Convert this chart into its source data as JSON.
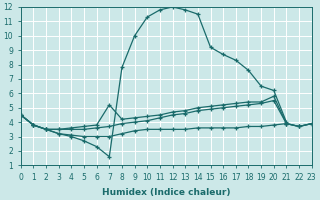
{
  "xlabel": "Humidex (Indice chaleur)",
  "xlim": [
    0,
    23
  ],
  "ylim": [
    1,
    12
  ],
  "xticks": [
    0,
    1,
    2,
    3,
    4,
    5,
    6,
    7,
    8,
    9,
    10,
    11,
    12,
    13,
    14,
    15,
    16,
    17,
    18,
    19,
    20,
    21,
    22,
    23
  ],
  "yticks": [
    1,
    2,
    3,
    4,
    5,
    6,
    7,
    8,
    9,
    10,
    11,
    12
  ],
  "bg_color": "#cce8e8",
  "grid_color": "#ffffff",
  "line_color": "#1a6b6b",
  "curve_arc": {
    "x": [
      0,
      1,
      2,
      3,
      4,
      5,
      6,
      7,
      8,
      9,
      10,
      11,
      12,
      13,
      14,
      15,
      16,
      17,
      18,
      19,
      20,
      21
    ],
    "y": [
      4.5,
      3.8,
      3.5,
      3.2,
      3.0,
      2.7,
      2.3,
      1.6,
      7.8,
      10.0,
      11.3,
      11.8,
      12.0,
      11.8,
      11.5,
      9.2,
      8.7,
      8.3,
      7.6,
      6.5,
      6.2,
      4.0
    ]
  },
  "curve_peak_short": {
    "x": [
      0,
      1,
      2,
      3,
      4,
      5,
      6,
      7,
      8,
      9,
      10,
      11,
      12,
      13,
      14,
      15,
      16,
      17,
      18,
      19,
      20,
      21,
      22,
      23
    ],
    "y": [
      4.5,
      3.8,
      3.5,
      3.5,
      3.6,
      3.7,
      3.8,
      5.2,
      4.2,
      4.3,
      4.4,
      4.5,
      4.7,
      4.8,
      5.0,
      5.1,
      5.2,
      5.3,
      5.4,
      5.4,
      5.8,
      3.9,
      3.7,
      3.9
    ]
  },
  "curve_flat_top": {
    "x": [
      0,
      1,
      2,
      3,
      4,
      5,
      6,
      7,
      8,
      9,
      10,
      11,
      12,
      13,
      14,
      15,
      16,
      17,
      18,
      19,
      20,
      21,
      22,
      23
    ],
    "y": [
      4.5,
      3.8,
      3.5,
      3.5,
      3.5,
      3.5,
      3.6,
      3.7,
      3.9,
      4.0,
      4.1,
      4.3,
      4.5,
      4.6,
      4.8,
      4.9,
      5.0,
      5.1,
      5.2,
      5.3,
      5.5,
      3.9,
      3.7,
      3.9
    ]
  },
  "curve_flat_bot": {
    "x": [
      0,
      1,
      2,
      3,
      4,
      5,
      6,
      7,
      8,
      9,
      10,
      11,
      12,
      13,
      14,
      15,
      16,
      17,
      18,
      19,
      20,
      21,
      22,
      23
    ],
    "y": [
      4.5,
      3.8,
      3.5,
      3.2,
      3.1,
      3.0,
      3.0,
      3.0,
      3.2,
      3.4,
      3.5,
      3.5,
      3.5,
      3.5,
      3.6,
      3.6,
      3.6,
      3.6,
      3.7,
      3.7,
      3.8,
      3.9,
      3.7,
      3.9
    ]
  }
}
